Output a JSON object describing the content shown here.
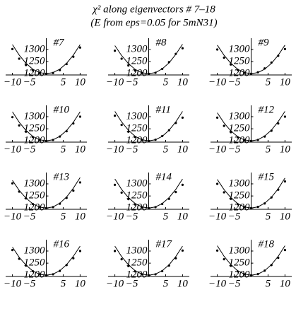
{
  "title": "χ² along eigenvectors # 7–18",
  "subtitle": "(E from eps=0.05 for 5mN31)",
  "chart_data": [
    {
      "type": "line",
      "title": "#7",
      "x": [
        -10,
        -8,
        -6,
        -4,
        -2,
        0,
        2,
        4,
        6,
        8,
        10
      ],
      "series": [
        {
          "color": "#000",
          "mark": "line",
          "values": [
            1320,
            1277,
            1243,
            1219,
            1205,
            1200,
            1205,
            1219,
            1243,
            1277,
            1320
          ]
        },
        {
          "color": "#000",
          "mark": "dot",
          "values": [
            1302,
            1262,
            1236,
            1214,
            1203,
            1200,
            1203,
            1215,
            1240,
            1270,
            1308
          ]
        }
      ],
      "xlim": [
        -12,
        12
      ],
      "ylim": [
        1195,
        1335
      ],
      "xticks": [
        {
          "value": -10,
          "label": "−10"
        },
        {
          "value": -5,
          "label": "−5"
        },
        5,
        10
      ],
      "yticks": [
        1200,
        1250,
        1300
      ]
    },
    {
      "type": "line",
      "title": "#8",
      "x": [
        -10,
        -8,
        -6,
        -4,
        -2,
        0,
        2,
        4,
        6,
        8,
        10
      ],
      "series": [
        {
          "color": "#000",
          "mark": "line",
          "values": [
            1316,
            1275,
            1242,
            1218,
            1204,
            1200,
            1205,
            1220,
            1245,
            1280,
            1322
          ]
        },
        {
          "color": "#000",
          "mark": "dot",
          "values": [
            1295,
            1262,
            1234,
            1213,
            1203,
            1200,
            1204,
            1220,
            1248,
            1282,
            1305
          ]
        }
      ],
      "xlim": [
        -12,
        12
      ],
      "ylim": [
        1195,
        1335
      ],
      "xticks": [
        {
          "value": -10,
          "label": "−10"
        },
        {
          "value": -5,
          "label": "−5"
        },
        5,
        10
      ],
      "yticks": [
        1200,
        1250,
        1300
      ]
    },
    {
      "type": "line",
      "title": "#9",
      "x": [
        -10,
        -8,
        -6,
        -4,
        -2,
        0,
        2,
        4,
        6,
        8,
        10
      ],
      "series": [
        {
          "color": "#000",
          "mark": "line",
          "values": [
            1318,
            1276,
            1243,
            1219,
            1205,
            1200,
            1205,
            1219,
            1243,
            1276,
            1318
          ]
        },
        {
          "color": "#000",
          "mark": "dot",
          "values": [
            1300,
            1266,
            1238,
            1216,
            1204,
            1200,
            1206,
            1222,
            1246,
            1274,
            1302
          ]
        }
      ],
      "xlim": [
        -12,
        12
      ],
      "ylim": [
        1195,
        1335
      ],
      "xticks": [
        {
          "value": -10,
          "label": "−10"
        },
        {
          "value": -5,
          "label": "−5"
        },
        5,
        10
      ],
      "yticks": [
        1200,
        1250,
        1300
      ]
    },
    {
      "type": "line",
      "title": "#10",
      "x": [
        -10,
        -8,
        -6,
        -4,
        -2,
        0,
        2,
        4,
        6,
        8,
        10
      ],
      "series": [
        {
          "color": "#000",
          "mark": "line",
          "values": [
            1320,
            1277,
            1243,
            1219,
            1205,
            1200,
            1205,
            1219,
            1243,
            1277,
            1320
          ]
        },
        {
          "color": "#000",
          "mark": "dot",
          "values": [
            1298,
            1264,
            1238,
            1216,
            1204,
            1200,
            1204,
            1218,
            1240,
            1272,
            1300
          ]
        }
      ],
      "xlim": [
        -12,
        12
      ],
      "ylim": [
        1195,
        1335
      ],
      "xticks": [
        {
          "value": -10,
          "label": "−10"
        },
        {
          "value": -5,
          "label": "−5"
        },
        5,
        10
      ],
      "yticks": [
        1200,
        1250,
        1300
      ]
    },
    {
      "type": "line",
      "title": "#11",
      "x": [
        -10,
        -8,
        -6,
        -4,
        -2,
        0,
        2,
        4,
        6,
        8,
        10
      ],
      "series": [
        {
          "color": "#000",
          "mark": "line",
          "values": [
            1322,
            1278,
            1244,
            1219,
            1205,
            1200,
            1205,
            1219,
            1244,
            1278,
            1322
          ]
        },
        {
          "color": "#000",
          "mark": "dot",
          "values": [
            1304,
            1266,
            1238,
            1216,
            1204,
            1200,
            1205,
            1220,
            1244,
            1274,
            1296
          ]
        }
      ],
      "xlim": [
        -12,
        12
      ],
      "ylim": [
        1195,
        1335
      ],
      "xticks": [
        {
          "value": -10,
          "label": "−10"
        },
        {
          "value": -5,
          "label": "−5"
        },
        5,
        10
      ],
      "yticks": [
        1200,
        1250,
        1300
      ]
    },
    {
      "type": "line",
      "title": "#12",
      "x": [
        -10,
        -8,
        -6,
        -4,
        -2,
        0,
        2,
        4,
        6,
        8,
        10
      ],
      "series": [
        {
          "color": "#000",
          "mark": "line",
          "values": [
            1316,
            1274,
            1241,
            1218,
            1204,
            1200,
            1205,
            1220,
            1245,
            1280,
            1322
          ]
        },
        {
          "color": "#000",
          "mark": "dot",
          "values": [
            1296,
            1262,
            1236,
            1215,
            1203,
            1200,
            1204,
            1218,
            1242,
            1272,
            1300
          ]
        }
      ],
      "xlim": [
        -12,
        12
      ],
      "ylim": [
        1195,
        1335
      ],
      "xticks": [
        {
          "value": -10,
          "label": "−10"
        },
        {
          "value": -5,
          "label": "−5"
        },
        5,
        10
      ],
      "yticks": [
        1200,
        1250,
        1300
      ]
    },
    {
      "type": "line",
      "title": "#13",
      "x": [
        -10,
        -8,
        -6,
        -4,
        -2,
        0,
        2,
        4,
        6,
        8,
        10
      ],
      "series": [
        {
          "color": "#000",
          "mark": "line",
          "values": [
            1314,
            1273,
            1241,
            1218,
            1204,
            1200,
            1205,
            1220,
            1246,
            1282,
            1326
          ]
        },
        {
          "color": "#000",
          "mark": "dot",
          "values": [
            1302,
            1268,
            1240,
            1217,
            1204,
            1200,
            1204,
            1218,
            1242,
            1272,
            1306
          ]
        }
      ],
      "xlim": [
        -12,
        12
      ],
      "ylim": [
        1195,
        1335
      ],
      "xticks": [
        {
          "value": -10,
          "label": "−10"
        },
        {
          "value": -5,
          "label": "−5"
        },
        5,
        10
      ],
      "yticks": [
        1200,
        1250,
        1300
      ]
    },
    {
      "type": "line",
      "title": "#14",
      "x": [
        -10,
        -8,
        -6,
        -4,
        -2,
        0,
        2,
        4,
        6,
        8,
        10
      ],
      "series": [
        {
          "color": "#000",
          "mark": "line",
          "values": [
            1320,
            1277,
            1243,
            1219,
            1205,
            1200,
            1205,
            1219,
            1243,
            1277,
            1320
          ]
        },
        {
          "color": "#000",
          "mark": "dot",
          "values": [
            1296,
            1264,
            1237,
            1215,
            1203,
            1200,
            1204,
            1217,
            1238,
            1266,
            1296
          ]
        }
      ],
      "xlim": [
        -12,
        12
      ],
      "ylim": [
        1195,
        1335
      ],
      "xticks": [
        {
          "value": -10,
          "label": "−10"
        },
        {
          "value": -5,
          "label": "−5"
        },
        5,
        10
      ],
      "yticks": [
        1200,
        1250,
        1300
      ]
    },
    {
      "type": "line",
      "title": "#15",
      "x": [
        -10,
        -8,
        -6,
        -4,
        -2,
        0,
        2,
        4,
        6,
        8,
        10
      ],
      "series": [
        {
          "color": "#000",
          "mark": "line",
          "values": [
            1318,
            1276,
            1243,
            1219,
            1205,
            1200,
            1205,
            1220,
            1245,
            1280,
            1324
          ]
        },
        {
          "color": "#000",
          "mark": "dot",
          "values": [
            1300,
            1265,
            1238,
            1216,
            1204,
            1200,
            1205,
            1219,
            1244,
            1276,
            1310
          ]
        }
      ],
      "xlim": [
        -12,
        12
      ],
      "ylim": [
        1195,
        1335
      ],
      "xticks": [
        {
          "value": -10,
          "label": "−10"
        },
        {
          "value": -5,
          "label": "−5"
        },
        5,
        10
      ],
      "yticks": [
        1200,
        1250,
        1300
      ]
    },
    {
      "type": "line",
      "title": "#16",
      "x": [
        -10,
        -8,
        -6,
        -4,
        -2,
        0,
        2,
        4,
        6,
        8,
        10
      ],
      "series": [
        {
          "color": "#000",
          "mark": "line",
          "values": [
            1316,
            1274,
            1242,
            1218,
            1204,
            1200,
            1205,
            1219,
            1244,
            1278,
            1320
          ]
        },
        {
          "color": "#000",
          "mark": "dot",
          "values": [
            1304,
            1268,
            1240,
            1217,
            1204,
            1200,
            1204,
            1218,
            1242,
            1270,
            1300
          ]
        }
      ],
      "xlim": [
        -12,
        12
      ],
      "ylim": [
        1195,
        1335
      ],
      "xticks": [
        {
          "value": -10,
          "label": "−10"
        },
        {
          "value": -5,
          "label": "−5"
        },
        5,
        10
      ],
      "yticks": [
        1200,
        1250,
        1300
      ]
    },
    {
      "type": "line",
      "title": "#17",
      "x": [
        -10,
        -8,
        -6,
        -4,
        -2,
        0,
        2,
        4,
        6,
        8,
        10
      ],
      "series": [
        {
          "color": "#000",
          "mark": "line",
          "values": [
            1320,
            1277,
            1243,
            1219,
            1205,
            1200,
            1205,
            1219,
            1243,
            1277,
            1320
          ]
        },
        {
          "color": "#000",
          "mark": "dot",
          "values": [
            1300,
            1266,
            1238,
            1216,
            1204,
            1200,
            1204,
            1217,
            1240,
            1270,
            1302
          ]
        }
      ],
      "xlim": [
        -12,
        12
      ],
      "ylim": [
        1195,
        1335
      ],
      "xticks": [
        {
          "value": -10,
          "label": "−10"
        },
        {
          "value": -5,
          "label": "−5"
        },
        5,
        10
      ],
      "yticks": [
        1200,
        1250,
        1300
      ]
    },
    {
      "type": "line",
      "title": "#18",
      "x": [
        -10,
        -8,
        -6,
        -4,
        -2,
        0,
        2,
        4,
        6,
        8,
        10
      ],
      "series": [
        {
          "color": "#000",
          "mark": "line",
          "values": [
            1322,
            1278,
            1244,
            1219,
            1205,
            1200,
            1205,
            1219,
            1244,
            1278,
            1322
          ]
        },
        {
          "color": "#000",
          "mark": "dot",
          "values": [
            1302,
            1266,
            1239,
            1216,
            1204,
            1200,
            1205,
            1219,
            1242,
            1272,
            1304
          ]
        }
      ],
      "xlim": [
        -12,
        12
      ],
      "ylim": [
        1195,
        1335
      ],
      "xticks": [
        {
          "value": -10,
          "label": "−10"
        },
        {
          "value": -5,
          "label": "−5"
        },
        5,
        10
      ],
      "yticks": [
        1200,
        1250,
        1300
      ]
    }
  ]
}
